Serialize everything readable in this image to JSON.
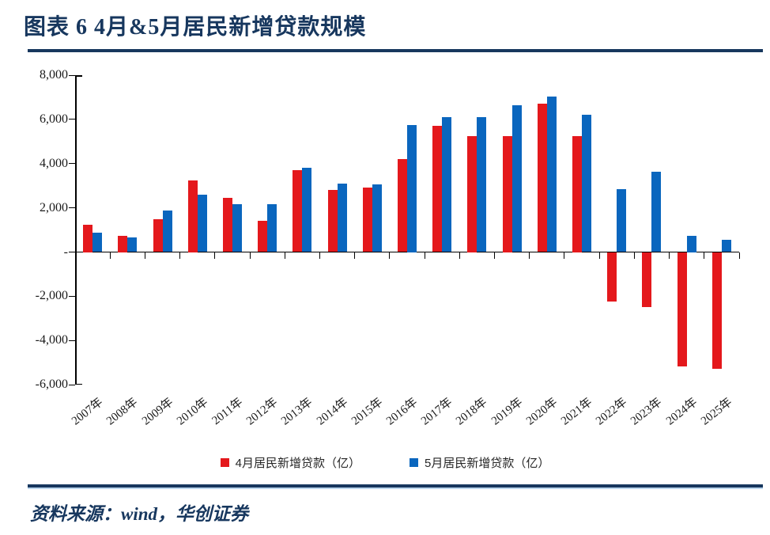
{
  "header": {
    "title": "图表 6  4月&5月居民新增贷款规模"
  },
  "footer": {
    "source": "资料来源：wind，华创证券"
  },
  "colors": {
    "navy": "#17375E",
    "april_red": "#E4181C",
    "may_blue": "#0A66BE",
    "rule_shadow": "#BDD7EE",
    "axis": "#000000"
  },
  "chart_data": {
    "type": "bar",
    "title": "图表 6  4月&5月居民新增贷款规模",
    "unit": "亿",
    "grid": false,
    "legend_position": "bottom",
    "ylim": [
      -6000,
      8000
    ],
    "categories": [
      "2007年",
      "2008年",
      "2009年",
      "2010年",
      "2011年",
      "2012年",
      "2013年",
      "2014年",
      "2015年",
      "2016年",
      "2017年",
      "2018年",
      "2019年",
      "2020年",
      "2021年",
      "2022年",
      "2023年",
      "2024年",
      "2025年"
    ],
    "series": [
      {
        "key": "april",
        "name": "4月居民新增贷款（亿）",
        "color": "#E4181C",
        "values": [
          1250,
          750,
          1480,
          3250,
          2450,
          1400,
          3700,
          2800,
          2900,
          4200,
          5700,
          5250,
          5250,
          6700,
          5250,
          -2200,
          -2450,
          -5150,
          -5250
        ]
      },
      {
        "key": "may",
        "name": "5月居民新增贷款（亿）",
        "color": "#0A66BE",
        "values": [
          880,
          680,
          1880,
          2600,
          2150,
          2150,
          3800,
          3100,
          3050,
          5750,
          6100,
          6100,
          6650,
          7050,
          6200,
          2850,
          3650,
          750,
          550
        ]
      }
    ],
    "yticks": [
      {
        "value": 8000,
        "label": "8,000"
      },
      {
        "value": 6000,
        "label": "6,000"
      },
      {
        "value": 4000,
        "label": "4,000"
      },
      {
        "value": 2000,
        "label": "2,000"
      },
      {
        "value": 0,
        "label": "-"
      },
      {
        "value": -2000,
        "label": "-2,000"
      },
      {
        "value": -4000,
        "label": "-4,000"
      },
      {
        "value": -6000,
        "label": "-6,000"
      }
    ]
  }
}
